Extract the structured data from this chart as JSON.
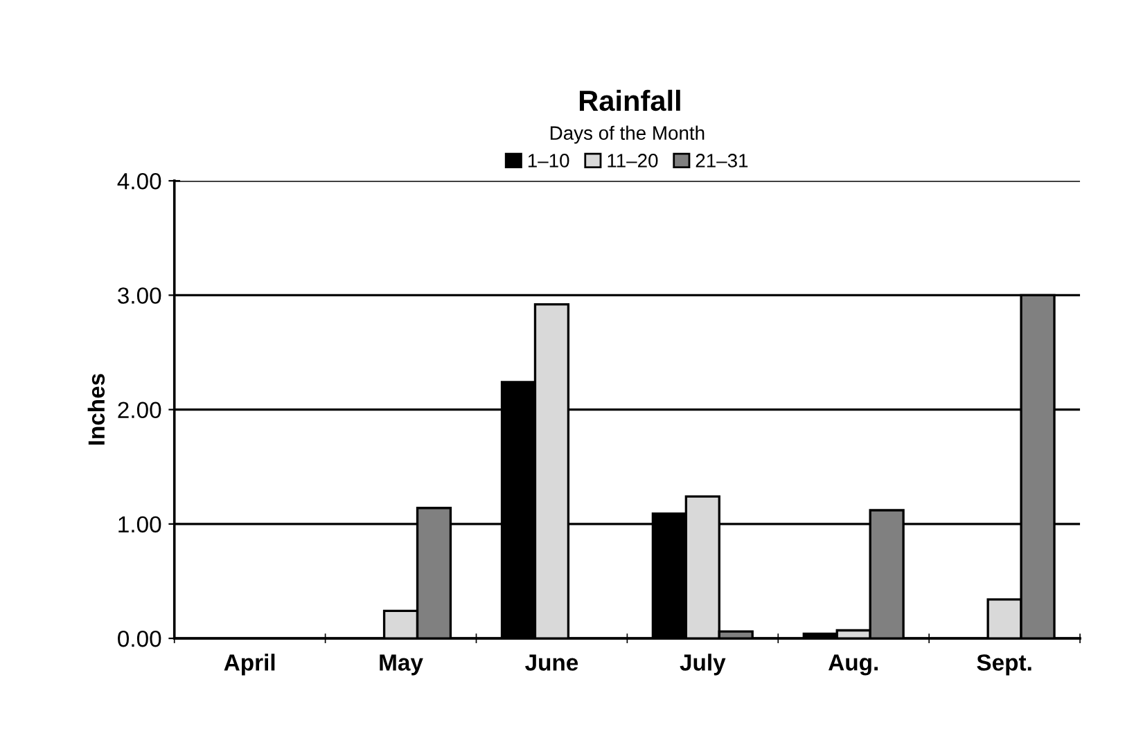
{
  "chart_data": {
    "type": "bar",
    "title": "Rainfall",
    "legend_title": "Days of the Month",
    "ylabel": "Inches",
    "categories": [
      "April",
      "May",
      "June",
      "July",
      "Aug.",
      "Sept."
    ],
    "series": [
      {
        "name": "1–10",
        "color": "#000000",
        "values": [
          0,
          0,
          2.24,
          1.09,
          0.04,
          0
        ]
      },
      {
        "name": "11–20",
        "color": "#d9d9d9",
        "values": [
          0,
          0.24,
          2.92,
          1.24,
          0.07,
          0.34
        ]
      },
      {
        "name": "21–31",
        "color": "#808080",
        "values": [
          0,
          1.14,
          0,
          0.06,
          1.12,
          3.0
        ]
      }
    ],
    "ylim": [
      0,
      4
    ],
    "yticks": [
      {
        "value": 0,
        "label": "0.00"
      },
      {
        "value": 1,
        "label": "1.00"
      },
      {
        "value": 2,
        "label": "2.00"
      },
      {
        "value": 3,
        "label": "3.00"
      },
      {
        "value": 4,
        "label": "4.00"
      }
    ],
    "grid": "y",
    "legend": "top"
  }
}
